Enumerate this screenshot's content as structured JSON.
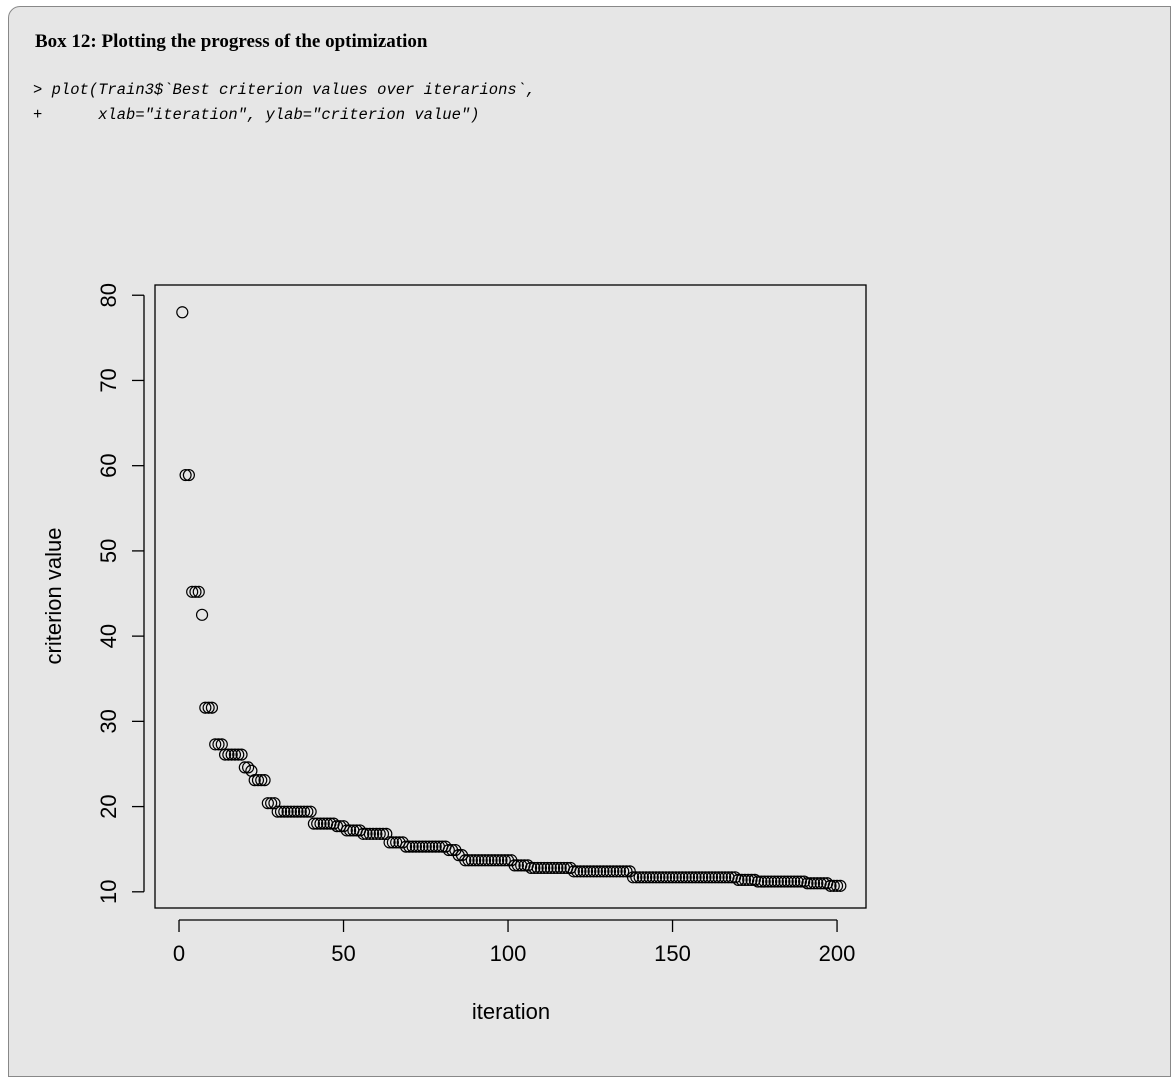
{
  "box": {
    "title": "Box 12: Plotting the progress of the optimization",
    "code": [
      "> plot(Train3$`Best criterion values over iterarions`,",
      "+      xlab=\"iteration\", ylab=\"criterion value\")"
    ]
  },
  "chart_data": {
    "type": "scatter",
    "x_label": "iteration",
    "y_label": "criterion value",
    "xlim": [
      -7.3,
      208.8
    ],
    "ylim": [
      8.1,
      81.2
    ],
    "xticks": [
      0,
      50,
      100,
      150,
      200
    ],
    "yticks": [
      10,
      20,
      30,
      40,
      50,
      60,
      70,
      80
    ],
    "color": "#000000",
    "x": [
      1,
      2,
      3,
      4,
      5,
      6,
      7,
      8,
      9,
      10,
      11,
      12,
      13,
      14,
      15,
      16,
      17,
      18,
      19,
      20,
      21,
      22,
      23,
      24,
      25,
      26,
      27,
      28,
      29,
      30,
      31,
      32,
      33,
      34,
      35,
      36,
      37,
      38,
      39,
      40,
      41,
      42,
      43,
      44,
      45,
      46,
      47,
      48,
      49,
      50,
      51,
      52,
      53,
      54,
      55,
      56,
      57,
      58,
      59,
      60,
      61,
      62,
      63,
      64,
      65,
      66,
      67,
      68,
      69,
      70,
      71,
      72,
      73,
      74,
      75,
      76,
      77,
      78,
      79,
      80,
      81,
      82,
      83,
      84,
      85,
      86,
      87,
      88,
      89,
      90,
      91,
      92,
      93,
      94,
      95,
      96,
      97,
      98,
      99,
      100,
      101,
      102,
      103,
      104,
      105,
      106,
      107,
      108,
      109,
      110,
      111,
      112,
      113,
      114,
      115,
      116,
      117,
      118,
      119,
      120,
      121,
      122,
      123,
      124,
      125,
      126,
      127,
      128,
      129,
      130,
      131,
      132,
      133,
      134,
      135,
      136,
      137,
      138,
      139,
      140,
      141,
      142,
      143,
      144,
      145,
      146,
      147,
      148,
      149,
      150,
      151,
      152,
      153,
      154,
      155,
      156,
      157,
      158,
      159,
      160,
      161,
      162,
      163,
      164,
      165,
      166,
      167,
      168,
      169,
      170,
      171,
      172,
      173,
      174,
      175,
      176,
      177,
      178,
      179,
      180,
      181,
      182,
      183,
      184,
      185,
      186,
      187,
      188,
      189,
      190,
      191,
      192,
      193,
      194,
      195,
      196,
      197,
      198,
      199,
      200,
      201
    ],
    "values": [
      78,
      58.9,
      58.9,
      45.2,
      45.2,
      45.2,
      42.5,
      31.6,
      31.6,
      31.6,
      27.3,
      27.3,
      27.3,
      26.1,
      26.1,
      26.1,
      26.1,
      26.1,
      26.1,
      24.6,
      24.6,
      24.2,
      23.1,
      23.1,
      23.1,
      23.1,
      20.4,
      20.4,
      20.4,
      19.4,
      19.4,
      19.4,
      19.4,
      19.4,
      19.4,
      19.4,
      19.4,
      19.4,
      19.4,
      19.4,
      18.0,
      18.0,
      18.0,
      18.0,
      18.0,
      18.0,
      18.0,
      17.7,
      17.7,
      17.7,
      17.2,
      17.2,
      17.2,
      17.2,
      17.2,
      16.8,
      16.8,
      16.8,
      16.8,
      16.8,
      16.8,
      16.8,
      16.8,
      15.8,
      15.8,
      15.8,
      15.8,
      15.8,
      15.3,
      15.3,
      15.3,
      15.3,
      15.3,
      15.3,
      15.3,
      15.3,
      15.3,
      15.3,
      15.3,
      15.3,
      15.3,
      14.9,
      14.9,
      14.9,
      14.3,
      14.3,
      13.7,
      13.7,
      13.7,
      13.7,
      13.7,
      13.7,
      13.7,
      13.7,
      13.7,
      13.7,
      13.7,
      13.7,
      13.7,
      13.7,
      13.7,
      13.1,
      13.1,
      13.1,
      13.1,
      13.1,
      12.8,
      12.8,
      12.8,
      12.8,
      12.8,
      12.8,
      12.8,
      12.8,
      12.8,
      12.8,
      12.8,
      12.8,
      12.8,
      12.4,
      12.4,
      12.4,
      12.4,
      12.4,
      12.4,
      12.4,
      12.4,
      12.4,
      12.4,
      12.4,
      12.4,
      12.4,
      12.4,
      12.4,
      12.4,
      12.4,
      12.4,
      11.7,
      11.7,
      11.7,
      11.7,
      11.7,
      11.7,
      11.7,
      11.7,
      11.7,
      11.7,
      11.7,
      11.7,
      11.7,
      11.7,
      11.7,
      11.7,
      11.7,
      11.7,
      11.7,
      11.7,
      11.7,
      11.7,
      11.7,
      11.7,
      11.7,
      11.7,
      11.7,
      11.7,
      11.7,
      11.7,
      11.7,
      11.7,
      11.4,
      11.4,
      11.4,
      11.4,
      11.4,
      11.4,
      11.2,
      11.2,
      11.2,
      11.2,
      11.2,
      11.2,
      11.2,
      11.2,
      11.2,
      11.2,
      11.2,
      11.2,
      11.2,
      11.2,
      11.2,
      11.0,
      11.0,
      11.0,
      11.0,
      11.0,
      11.0,
      11.0,
      10.7,
      10.7,
      10.7,
      10.7
    ]
  }
}
